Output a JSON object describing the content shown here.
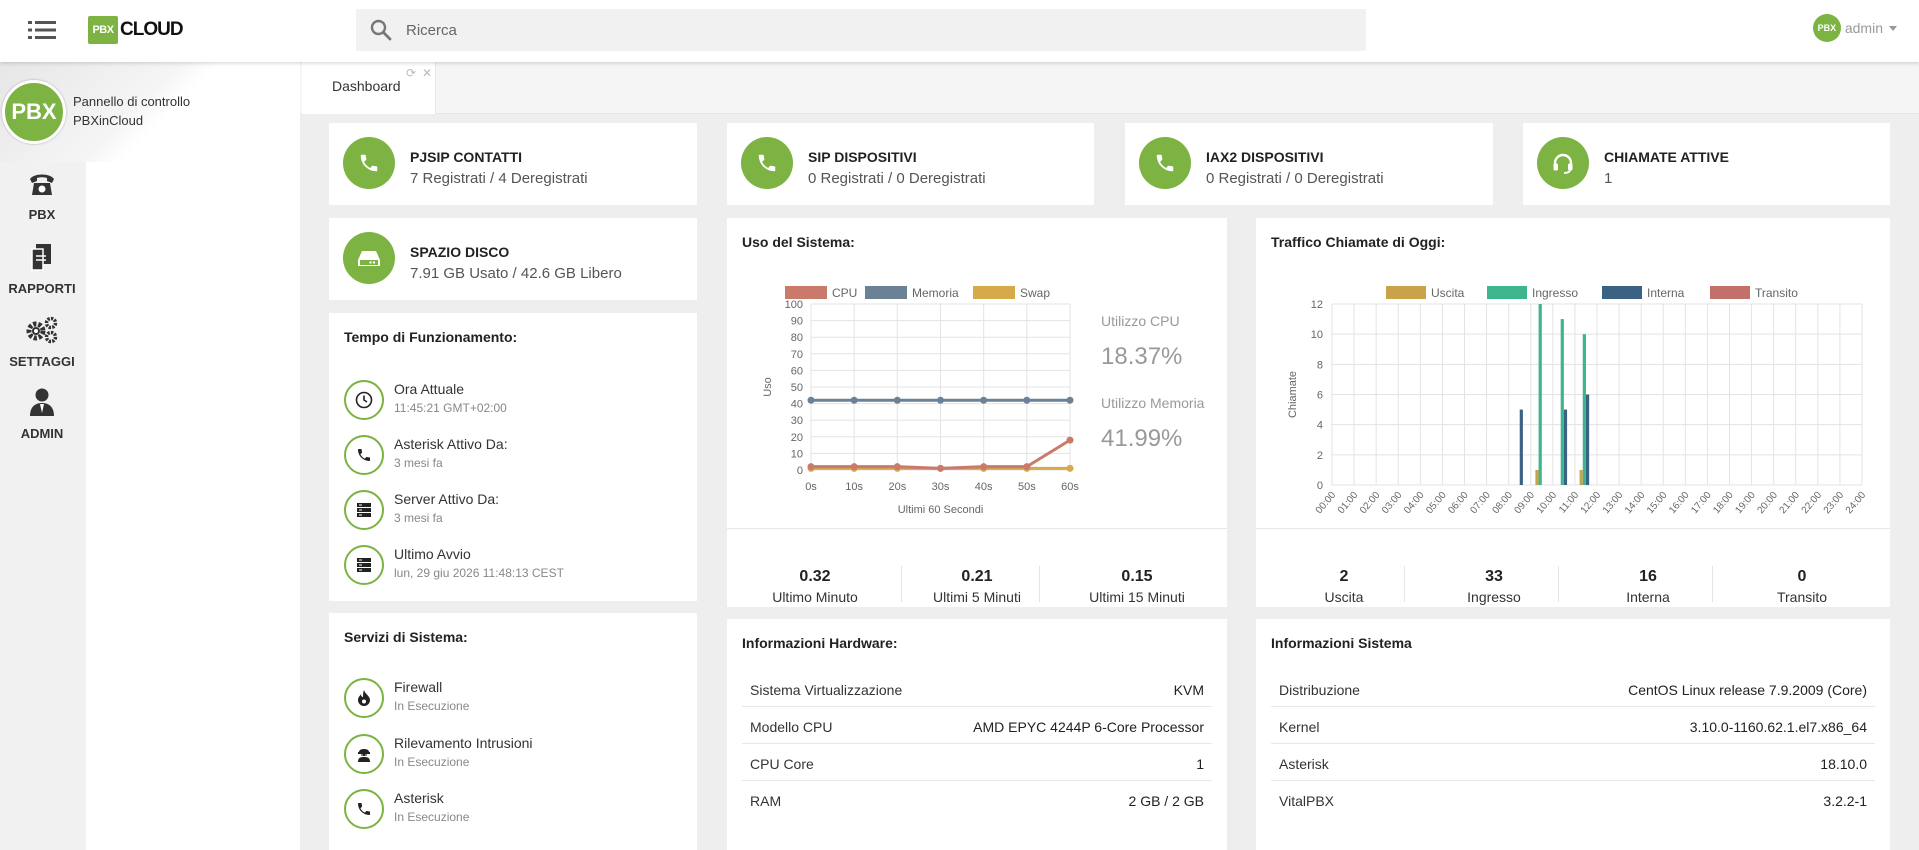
{
  "app": {
    "logo_box": "PBX",
    "logo_text": "CLOUD",
    "search_placeholder": "Ricerca",
    "user": {
      "avatar": "PBX",
      "name": "admin"
    }
  },
  "sidebar": {
    "avatar": "PBX",
    "title_line1": "Pannello di controllo",
    "title_line2": "PBXinCloud",
    "items": [
      {
        "label": "PBX",
        "icon": "phone-icon"
      },
      {
        "label": "RAPPORTI",
        "icon": "reports-icon"
      },
      {
        "label": "SETTAGGI",
        "icon": "gears-icon"
      },
      {
        "label": "ADMIN",
        "icon": "user-icon"
      }
    ]
  },
  "tab": {
    "label": "Dashboard"
  },
  "stats": [
    {
      "title": "PJSIP CONTATTI",
      "value": "7 Registrati / 4 Deregistrati",
      "icon": "phone-icon"
    },
    {
      "title": "SIP DISPOSITIVI",
      "value": "0 Registrati / 0 Deregistrati",
      "icon": "phone-icon"
    },
    {
      "title": "IAX2 DISPOSITIVI",
      "value": "0 Registrati / 0 Deregistrati",
      "icon": "phone-icon"
    },
    {
      "title": "CHIAMATE ATTIVE",
      "value": "1",
      "icon": "headset-icon"
    },
    {
      "title": "SPAZIO DISCO",
      "value": "7.91 GB Usato / 42.6 GB Libero",
      "icon": "hard-drive-icon"
    }
  ],
  "uptime": {
    "title": "Tempo di Funzionamento:",
    "items": [
      {
        "label": "Ora Attuale",
        "value": "11:45:21 GMT+02:00",
        "icon": "clock-icon"
      },
      {
        "label": "Asterisk Attivo Da:",
        "value": "3 mesi fa",
        "icon": "phone-icon"
      },
      {
        "label": "Server Attivo Da:",
        "value": "3 mesi fa",
        "icon": "server-icon"
      },
      {
        "label": "Ultimo Avvio",
        "value": "lun, 29 giu 2026 11:48:13 CEST",
        "icon": "server-icon"
      }
    ]
  },
  "services": {
    "title": "Servizi di Sistema:",
    "items": [
      {
        "label": "Firewall",
        "value": "In Esecuzione",
        "icon": "fire-icon"
      },
      {
        "label": "Rilevamento Intrusioni",
        "value": "In Esecuzione",
        "icon": "intruder-icon"
      },
      {
        "label": "Asterisk",
        "value": "In Esecuzione",
        "icon": "phone-icon"
      }
    ]
  },
  "system_usage": {
    "title": "Uso del Sistema:",
    "cpu_label": "Utilizzo CPU",
    "cpu_value": "18.37%",
    "mem_label": "Utilizzo Memoria",
    "mem_value": "41.99%",
    "load": [
      {
        "value": "0.32",
        "label": "Ultimo Minuto"
      },
      {
        "value": "0.21",
        "label": "Ultimi 5 Minuti"
      },
      {
        "value": "0.15",
        "label": "Ultimi 15 Minuti"
      }
    ]
  },
  "traffic": {
    "title": "Traffico Chiamate di Oggi:",
    "summary": [
      {
        "value": "2",
        "label": "Uscita"
      },
      {
        "value": "33",
        "label": "Ingresso"
      },
      {
        "value": "16",
        "label": "Interna"
      },
      {
        "value": "0",
        "label": "Transito"
      }
    ]
  },
  "hardware": {
    "title": "Informazioni Hardware:",
    "rows": [
      {
        "key": "Sistema Virtualizzazione",
        "value": "KVM"
      },
      {
        "key": "Modello CPU",
        "value": "AMD EPYC 4244P 6-Core Processor"
      },
      {
        "key": "CPU Core",
        "value": "1"
      },
      {
        "key": "RAM",
        "value": "2 GB / 2 GB"
      }
    ]
  },
  "sysinfo": {
    "title": "Informazioni Sistema",
    "rows": [
      {
        "key": "Distribuzione",
        "value": "CentOS Linux release 7.9.2009 (Core)"
      },
      {
        "key": "Kernel",
        "value": "3.10.0-1160.62.1.el7.x86_64"
      },
      {
        "key": "Asterisk",
        "value": "18.10.0"
      },
      {
        "key": "VitalPBX",
        "value": "3.2.2-1"
      }
    ]
  },
  "chart_data": [
    {
      "type": "line",
      "x": [
        "0s",
        "10s",
        "20s",
        "30s",
        "40s",
        "50s",
        "60s"
      ],
      "xlabel": "Ultimi 60 Secondi",
      "ylabel": "Uso",
      "ylim": [
        0,
        100
      ],
      "yticks": [
        "0",
        "10",
        "20",
        "30",
        "40",
        "50",
        "60",
        "70",
        "80",
        "90",
        "100"
      ],
      "grid": true,
      "legend": "top",
      "series": [
        {
          "name": "CPU",
          "color": "#c97a6b",
          "values": [
            2,
            2,
            2,
            1,
            2,
            2,
            18
          ]
        },
        {
          "name": "Memoria",
          "color": "#6b8196",
          "values": [
            42,
            42,
            42,
            42,
            42,
            42,
            42
          ]
        },
        {
          "name": "Swap",
          "color": "#d6a94a",
          "values": [
            1,
            1,
            1,
            1,
            1,
            1,
            1
          ]
        }
      ]
    },
    {
      "type": "bar",
      "categories": [
        "00:00",
        "01:00",
        "02:00",
        "03:00",
        "04:00",
        "05:00",
        "06:00",
        "07:00",
        "08:00",
        "09:00",
        "10:00",
        "11:00",
        "12:00",
        "13:00",
        "14:00",
        "15:00",
        "16:00",
        "17:00",
        "18:00",
        "19:00",
        "20:00",
        "21:00",
        "22:00",
        "23:00",
        "24:00"
      ],
      "ylabel": "Chiamate",
      "ylim": [
        0,
        12
      ],
      "yticks": [
        "0",
        "2",
        "4",
        "6",
        "8",
        "10",
        "12"
      ],
      "grid": true,
      "legend": "top",
      "series": [
        {
          "name": "Uscita",
          "color": "#c8a34a",
          "values": [
            0,
            0,
            0,
            0,
            0,
            0,
            0,
            0,
            0,
            1,
            0,
            1,
            0,
            0,
            0,
            0,
            0,
            0,
            0,
            0,
            0,
            0,
            0,
            0,
            0
          ]
        },
        {
          "name": "Ingresso",
          "color": "#3fb58e",
          "values": [
            0,
            0,
            0,
            0,
            0,
            0,
            0,
            0,
            0,
            12,
            11,
            10,
            0,
            0,
            0,
            0,
            0,
            0,
            0,
            0,
            0,
            0,
            0,
            0,
            0
          ]
        },
        {
          "name": "Interna",
          "color": "#3b6282",
          "values": [
            0,
            0,
            0,
            0,
            0,
            0,
            0,
            0,
            5,
            0,
            5,
            6,
            0,
            0,
            0,
            0,
            0,
            0,
            0,
            0,
            0,
            0,
            0,
            0,
            0
          ]
        },
        {
          "name": "Transito",
          "color": "#c4706a",
          "values": [
            0,
            0,
            0,
            0,
            0,
            0,
            0,
            0,
            0,
            0,
            0,
            0,
            0,
            0,
            0,
            0,
            0,
            0,
            0,
            0,
            0,
            0,
            0,
            0,
            0
          ]
        }
      ]
    }
  ]
}
